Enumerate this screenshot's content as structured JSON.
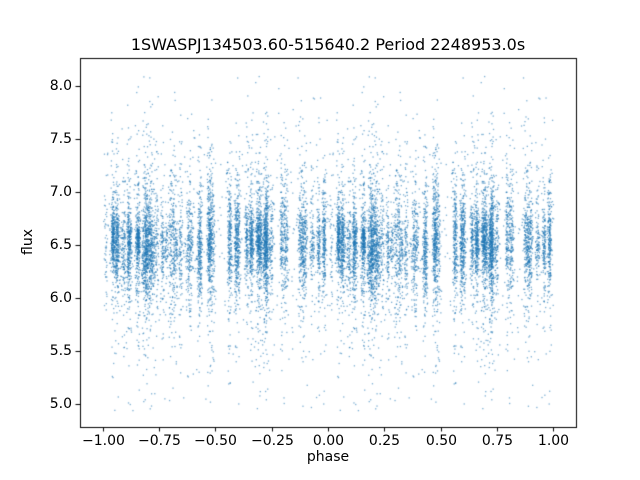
{
  "chart_data": {
    "type": "scatter",
    "title": "1SWASPJ134503.60-515640.2 Period 2248953.0s",
    "xlabel": "phase",
    "ylabel": "flux",
    "xlim": [
      -1.1,
      1.1
    ],
    "ylim": [
      4.78,
      8.26
    ],
    "grid": false,
    "legend": null,
    "marker_color": "#1f77b4",
    "marker_alpha": 0.6,
    "marker_size_px": 1.3,
    "xticks": [
      {
        "v": -1.0,
        "label": "−1.00"
      },
      {
        "v": -0.75,
        "label": "−0.75"
      },
      {
        "v": -0.5,
        "label": "−0.50"
      },
      {
        "v": -0.25,
        "label": "−0.25"
      },
      {
        "v": 0.0,
        "label": "0.00"
      },
      {
        "v": 0.25,
        "label": "0.25"
      },
      {
        "v": 0.5,
        "label": "0.50"
      },
      {
        "v": 0.75,
        "label": "0.75"
      },
      {
        "v": 1.0,
        "label": "1.00"
      }
    ],
    "yticks": [
      {
        "v": 5.0,
        "label": "5.0"
      },
      {
        "v": 5.5,
        "label": "5.5"
      },
      {
        "v": 6.0,
        "label": "6.0"
      },
      {
        "v": 6.5,
        "label": "6.5"
      },
      {
        "v": 7.0,
        "label": "7.0"
      },
      {
        "v": 7.5,
        "label": "7.5"
      },
      {
        "v": 8.0,
        "label": "8.0"
      }
    ],
    "description": "Phase-folded light curve; data plotted twice over phase -1 to 1; dense band of flux around 6.5 with vertical night-cluster streaks and sparse outliers from about 4.95 to 8.1",
    "generator": {
      "seed": 7,
      "n_clusters": 78,
      "cluster_min": 35,
      "cluster_max": 160,
      "phase_jitter": 0.0045,
      "flux_mean": 6.52,
      "base_spread": 0.17,
      "tail_frac": 0.22,
      "tail_std": 0.5,
      "n_scatter": 500,
      "scatter_std": 0.7,
      "flux_min": 4.93,
      "flux_max": 8.12
    }
  }
}
